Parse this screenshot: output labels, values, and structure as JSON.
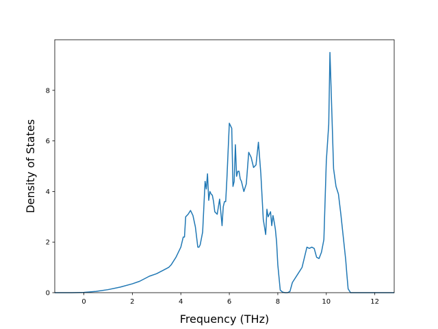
{
  "chart_data": {
    "type": "line",
    "title": "",
    "xlabel": "Frequency (THz)",
    "ylabel": "Density of States",
    "xlim": [
      -1.2,
      12.8
    ],
    "ylim": [
      0,
      10
    ],
    "xticks": [
      0,
      2,
      4,
      6,
      8,
      10,
      12
    ],
    "yticks": [
      0,
      2,
      4,
      6,
      8
    ],
    "grid": false,
    "legend": "none",
    "line_color": "#1f77b4",
    "series": [
      {
        "x": [
          -1.2,
          -0.5,
          0.0,
          0.5,
          1.0,
          1.5,
          2.0,
          2.3,
          2.6,
          2.7,
          3.0,
          3.3,
          3.5,
          3.6,
          3.8,
          4.0,
          4.1,
          4.15,
          4.2,
          4.3,
          4.4,
          4.5,
          4.6,
          4.7,
          4.75,
          4.8,
          4.9,
          5.0,
          5.05,
          5.1,
          5.15,
          5.2,
          5.25,
          5.3,
          5.35,
          5.4,
          5.5,
          5.6,
          5.7,
          5.75,
          5.8,
          5.85,
          5.9,
          6.0,
          6.1,
          6.15,
          6.2,
          6.25,
          6.3,
          6.35,
          6.4,
          6.45,
          6.5,
          6.6,
          6.7,
          6.8,
          6.9,
          7.0,
          7.1,
          7.2,
          7.3,
          7.4,
          7.5,
          7.55,
          7.6,
          7.7,
          7.75,
          7.8,
          7.85,
          7.9,
          7.95,
          8.0,
          8.05,
          8.1,
          8.2,
          8.3,
          8.4,
          8.5,
          8.6,
          8.8,
          9.0,
          9.2,
          9.3,
          9.4,
          9.5,
          9.6,
          9.7,
          9.8,
          9.9,
          10.0,
          10.1,
          10.15,
          10.2,
          10.3,
          10.4,
          10.5,
          10.6,
          10.7,
          10.8,
          10.85,
          10.9,
          11.0,
          11.1,
          11.2,
          11.3,
          11.4,
          11.5,
          11.6,
          11.7,
          12.0,
          12.8
        ],
        "y": [
          0,
          0,
          0.01,
          0.05,
          0.12,
          0.22,
          0.35,
          0.45,
          0.6,
          0.65,
          0.75,
          0.9,
          1.0,
          1.1,
          1.4,
          1.8,
          2.2,
          2.2,
          3.0,
          3.1,
          3.25,
          3.05,
          2.6,
          1.8,
          1.8,
          1.9,
          2.4,
          4.4,
          4.1,
          4.7,
          3.65,
          4.0,
          3.9,
          3.85,
          3.6,
          3.2,
          3.1,
          3.7,
          2.65,
          3.4,
          3.6,
          3.6,
          4.5,
          6.7,
          6.5,
          4.2,
          4.4,
          5.85,
          4.6,
          4.8,
          4.8,
          4.5,
          4.4,
          4.0,
          4.3,
          5.55,
          5.35,
          4.95,
          5.05,
          5.95,
          4.7,
          2.9,
          2.3,
          3.3,
          3.0,
          3.2,
          2.65,
          3.05,
          2.8,
          2.5,
          2.0,
          1.1,
          0.6,
          0.1,
          0.02,
          0,
          0,
          0.05,
          0.4,
          0.7,
          1.0,
          1.8,
          1.75,
          1.8,
          1.75,
          1.4,
          1.35,
          1.6,
          2.1,
          5.2,
          6.65,
          9.5,
          8.0,
          4.9,
          4.2,
          3.9,
          3.1,
          2.2,
          1.3,
          0.7,
          0.15,
          0,
          0,
          0,
          0,
          0,
          0,
          0,
          0,
          0,
          0
        ]
      }
    ]
  }
}
